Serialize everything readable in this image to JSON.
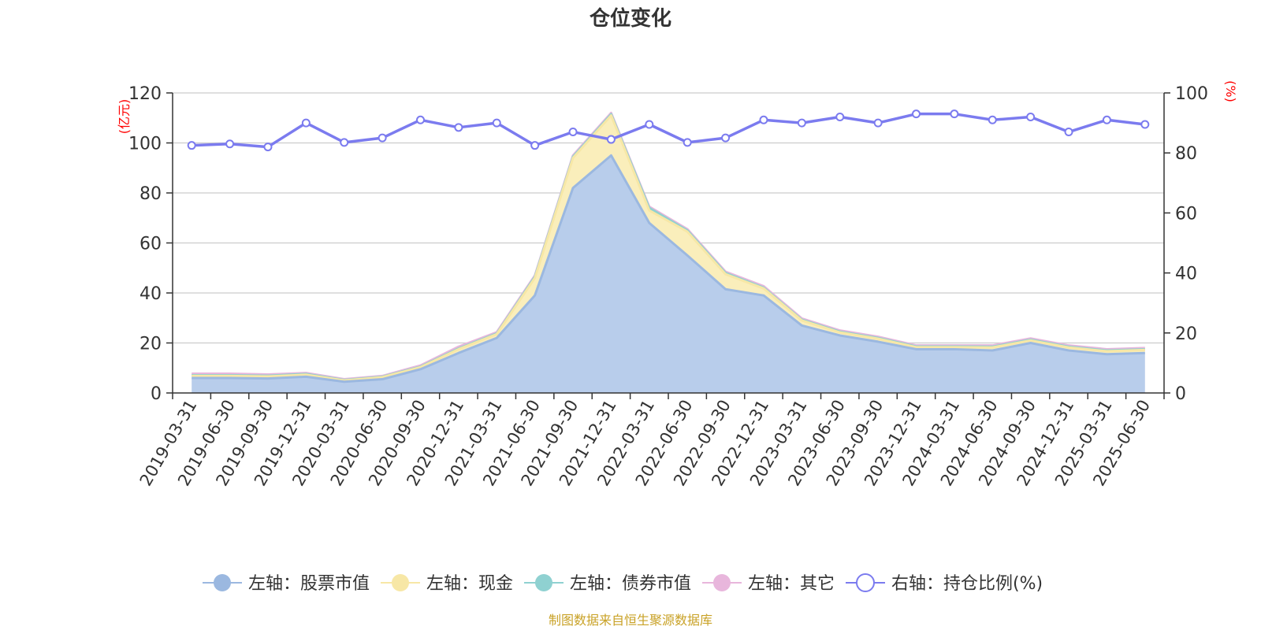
{
  "chart_data": {
    "type": "area",
    "title": "仓位变化",
    "source": "制图数据来自恒生聚源数据库",
    "left_axis": {
      "unit": "(亿元)",
      "min": 0,
      "max": 120,
      "ticks": [
        0,
        20,
        40,
        60,
        80,
        100,
        120
      ]
    },
    "right_axis": {
      "unit": "(%)",
      "min": 0,
      "max": 100,
      "ticks": [
        0,
        20,
        40,
        60,
        80,
        100
      ]
    },
    "grid": true,
    "legend_position": "bottom",
    "x": [
      "2019-03-31",
      "2019-06-30",
      "2019-09-30",
      "2019-12-31",
      "2020-03-31",
      "2020-06-30",
      "2020-09-30",
      "2020-12-31",
      "2021-03-31",
      "2021-06-30",
      "2021-09-30",
      "2021-12-31",
      "2022-03-31",
      "2022-06-30",
      "2022-09-30",
      "2022-12-31",
      "2023-03-31",
      "2023-06-30",
      "2023-09-30",
      "2023-12-31",
      "2024-03-31",
      "2024-06-30",
      "2024-09-30",
      "2024-12-31",
      "2025-03-31",
      "2025-06-30"
    ],
    "series": [
      {
        "name": "左轴：股票市值",
        "axis": "left",
        "kind": "stacked-area",
        "color": "#9bb8e0",
        "fill": "#b8cdeb",
        "values": [
          6.0,
          6.0,
          5.8,
          6.5,
          4.5,
          5.5,
          9.5,
          16.0,
          22.0,
          39.0,
          82.0,
          95.0,
          68.0,
          55.0,
          41.5,
          39.0,
          27.0,
          23.0,
          20.5,
          17.5,
          17.5,
          17.0,
          20.0,
          17.0,
          15.5,
          16.0
        ]
      },
      {
        "name": "左轴：现金",
        "axis": "left",
        "kind": "stacked-area",
        "color": "#f7e7a6",
        "fill": "#faeebb",
        "values": [
          0.8,
          0.8,
          0.8,
          0.8,
          0.5,
          0.8,
          0.8,
          1.5,
          1.5,
          7.0,
          12.0,
          16.0,
          5.0,
          9.5,
          6.0,
          2.8,
          2.0,
          1.2,
          1.2,
          0.8,
          0.8,
          1.2,
          1.0,
          1.2,
          1.2,
          1.2
        ]
      },
      {
        "name": "左轴：债券市值",
        "axis": "left",
        "kind": "stacked-area",
        "color": "#8fd1d1",
        "fill": "#b4e0e0",
        "values": [
          0.3,
          0.3,
          0.3,
          0.3,
          0.2,
          0.2,
          0.2,
          0.3,
          0.3,
          0.5,
          0.5,
          0.5,
          1.0,
          0.5,
          0.5,
          0.3,
          0.3,
          0.3,
          0.3,
          0.3,
          0.3,
          0.3,
          0.3,
          0.3,
          0.3,
          0.3
        ]
      },
      {
        "name": "左轴：其它",
        "axis": "left",
        "kind": "stacked-area",
        "color": "#e8b6dc",
        "fill": "#f0cce8",
        "values": [
          0.6,
          0.6,
          0.5,
          0.4,
          0.3,
          0.3,
          0.5,
          0.7,
          0.5,
          0.5,
          0.5,
          0.5,
          0.5,
          0.5,
          0.5,
          0.6,
          0.5,
          0.5,
          0.5,
          0.4,
          0.4,
          0.5,
          0.5,
          0.5,
          0.5,
          0.5
        ]
      },
      {
        "name": "右轴：持仓比例(%)",
        "axis": "right",
        "kind": "line",
        "color": "#7b7bef",
        "values": [
          82.5,
          83.0,
          82.0,
          90.0,
          83.5,
          85.0,
          91.0,
          88.5,
          90.0,
          82.5,
          87.0,
          84.5,
          89.5,
          83.5,
          85.0,
          91.0,
          90.0,
          92.0,
          90.0,
          93.0,
          93.0,
          91.0,
          92.0,
          87.0,
          91.0,
          89.5
        ]
      }
    ]
  }
}
